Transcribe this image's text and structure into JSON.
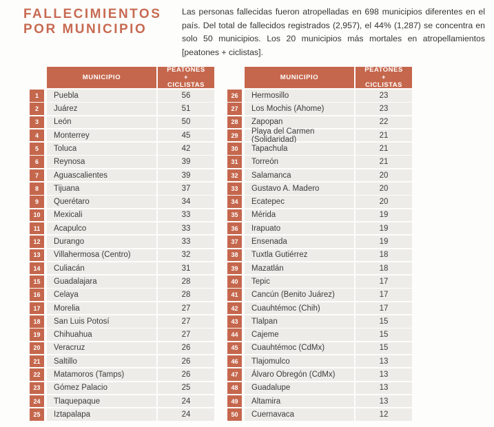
{
  "header": {
    "title_line1": "FALLECIMIENTOS",
    "title_line2": "POR MUNICIPIO",
    "intro": "Las personas fallecidas fueron atropelladas en 698 municipios diferentes en el país. Del total de fallecidos registrados (2,957), el 44% (1,287) se concentra en solo 50 municipios. Los 20 municipios más mortales en atropellamientos [peatones + ciclistas]."
  },
  "colors": {
    "accent": "#c5674d",
    "title": "#c76a52",
    "row_bg": "#edece8",
    "page_bg": "#fdfdfb",
    "text": "#3b3b3b"
  },
  "tables": [
    {
      "name": "ranking-1-25",
      "municipio_header": "MUNICIPIO",
      "count_header": "PEATONES + CICLISTAS",
      "rows": [
        {
          "rank": "1",
          "municipio": "Puebla",
          "count": "56"
        },
        {
          "rank": "2",
          "municipio": "Juárez",
          "count": "51"
        },
        {
          "rank": "3",
          "municipio": "León",
          "count": "50"
        },
        {
          "rank": "4",
          "municipio": "Monterrey",
          "count": "45"
        },
        {
          "rank": "5",
          "municipio": "Toluca",
          "count": "42"
        },
        {
          "rank": "6",
          "municipio": "Reynosa",
          "count": "39"
        },
        {
          "rank": "7",
          "municipio": "Aguascalientes",
          "count": "39"
        },
        {
          "rank": "8",
          "municipio": "Tijuana",
          "count": "37"
        },
        {
          "rank": "9",
          "municipio": "Querétaro",
          "count": "34"
        },
        {
          "rank": "10",
          "municipio": "Mexicali",
          "count": "33"
        },
        {
          "rank": "11",
          "municipio": "Acapulco",
          "count": "33"
        },
        {
          "rank": "12",
          "municipio": "Durango",
          "count": "33"
        },
        {
          "rank": "13",
          "municipio": "Villahermosa (Centro)",
          "count": "32"
        },
        {
          "rank": "14",
          "municipio": "Culiacán",
          "count": "31"
        },
        {
          "rank": "15",
          "municipio": "Guadalajara",
          "count": "28"
        },
        {
          "rank": "16",
          "municipio": "Celaya",
          "count": "28"
        },
        {
          "rank": "17",
          "municipio": "Morelia",
          "count": "27"
        },
        {
          "rank": "18",
          "municipio": "San Luis Potosí",
          "count": "27"
        },
        {
          "rank": "19",
          "municipio": "Chihuahua",
          "count": "27"
        },
        {
          "rank": "20",
          "municipio": "Veracruz",
          "count": "26"
        },
        {
          "rank": "21",
          "municipio": "Saltillo",
          "count": "26"
        },
        {
          "rank": "22",
          "municipio": "Matamoros (Tamps)",
          "count": "26"
        },
        {
          "rank": "23",
          "municipio": "Gómez Palacio",
          "count": "25"
        },
        {
          "rank": "24",
          "municipio": "Tlaquepaque",
          "count": "24"
        },
        {
          "rank": "25",
          "municipio": "Iztapalapa",
          "count": "24"
        }
      ]
    },
    {
      "name": "ranking-26-50",
      "municipio_header": "MUNICIPIO",
      "count_header": "PEATONES + CICLISTAS",
      "rows": [
        {
          "rank": "26",
          "municipio": "Hermosillo",
          "count": "23"
        },
        {
          "rank": "27",
          "municipio": "Los Mochis (Ahome)",
          "count": "23"
        },
        {
          "rank": "28",
          "municipio": "Zapopan",
          "count": "22"
        },
        {
          "rank": "29",
          "municipio": "Playa del Carmen (Solidaridad)",
          "count": "21"
        },
        {
          "rank": "30",
          "municipio": "Tapachula",
          "count": "21"
        },
        {
          "rank": "31",
          "municipio": "Torreón",
          "count": "21"
        },
        {
          "rank": "32",
          "municipio": "Salamanca",
          "count": "20"
        },
        {
          "rank": "33",
          "municipio": "Gustavo A. Madero",
          "count": "20"
        },
        {
          "rank": "34",
          "municipio": "Ecatepec",
          "count": "20"
        },
        {
          "rank": "35",
          "municipio": "Mérida",
          "count": "19"
        },
        {
          "rank": "36",
          "municipio": "Irapuato",
          "count": "19"
        },
        {
          "rank": "37",
          "municipio": "Ensenada",
          "count": "19"
        },
        {
          "rank": "38",
          "municipio": "Tuxtla Gutiérrez",
          "count": "18"
        },
        {
          "rank": "39",
          "municipio": "Mazatlán",
          "count": "18"
        },
        {
          "rank": "40",
          "municipio": "Tepic",
          "count": "17"
        },
        {
          "rank": "41",
          "municipio": "Cancún (Benito Juárez)",
          "count": "17"
        },
        {
          "rank": "42",
          "municipio": "Cuauhtémoc (Chih)",
          "count": "17"
        },
        {
          "rank": "43",
          "municipio": "Tlalpan",
          "count": "15"
        },
        {
          "rank": "44",
          "municipio": "Cajeme",
          "count": "15"
        },
        {
          "rank": "45",
          "municipio": "Cuauhtémoc (CdMx)",
          "count": "15"
        },
        {
          "rank": "46",
          "municipio": "Tlajomulco",
          "count": "13"
        },
        {
          "rank": "47",
          "municipio": "Álvaro Obregón (CdMx)",
          "count": "13"
        },
        {
          "rank": "48",
          "municipio": "Guadalupe",
          "count": "13"
        },
        {
          "rank": "49",
          "municipio": "Altamira",
          "count": "13"
        },
        {
          "rank": "50",
          "municipio": "Cuernavaca",
          "count": "12"
        }
      ]
    }
  ]
}
